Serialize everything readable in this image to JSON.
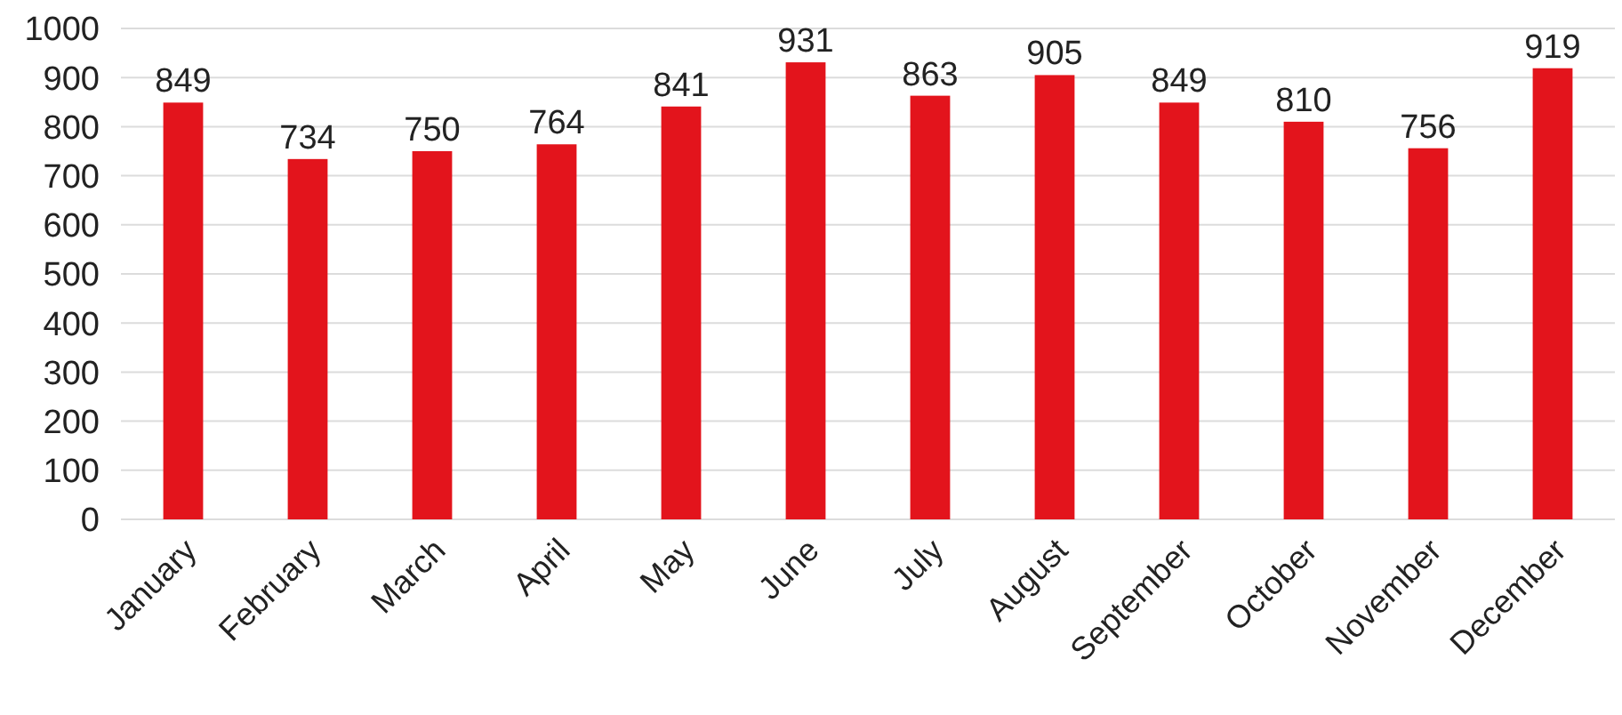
{
  "chart_data": {
    "type": "bar",
    "categories": [
      "January",
      "February",
      "March",
      "April",
      "May",
      "June",
      "July",
      "August",
      "September",
      "October",
      "November",
      "December"
    ],
    "values": [
      849,
      734,
      750,
      764,
      841,
      931,
      863,
      905,
      849,
      810,
      756,
      919
    ],
    "color": "#e3141c",
    "ylim": [
      0,
      1000
    ],
    "yticks": [
      0,
      100,
      200,
      300,
      400,
      500,
      600,
      700,
      800,
      900,
      1000
    ],
    "grid": "y",
    "data_labels": true
  }
}
